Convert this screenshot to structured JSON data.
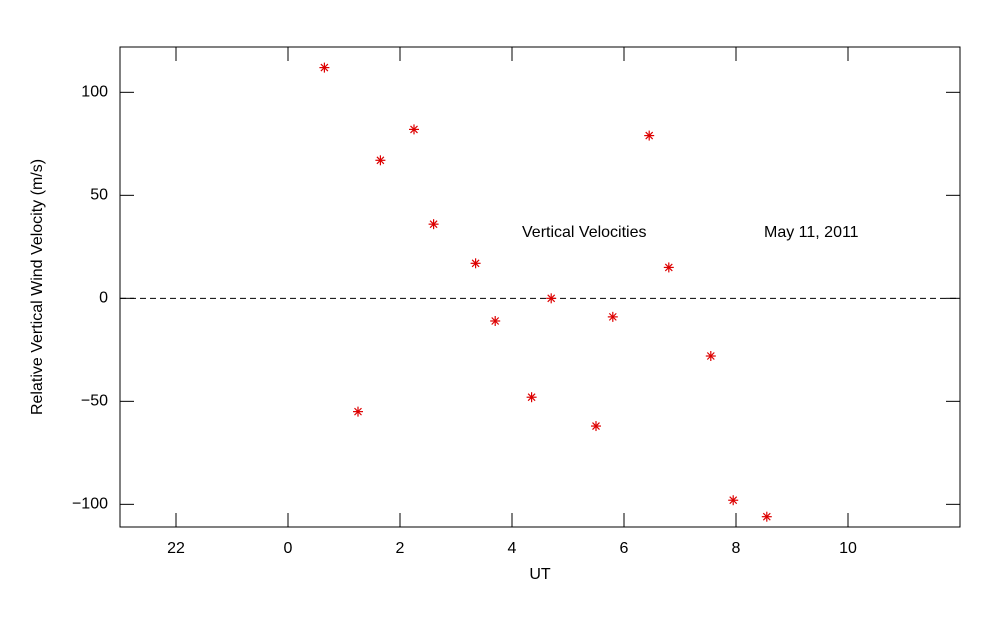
{
  "chart_data": {
    "type": "scatter",
    "xlabel": "UT",
    "ylabel": "Relative Vertical Wind Velocity (m/s)",
    "annotations": [
      "Vertical Velocities",
      "May 11, 2011"
    ],
    "series": [
      {
        "color": "#dd0000",
        "x": [
          0.65,
          1.25,
          1.65,
          2.25,
          2.6,
          3.35,
          3.7,
          4.35,
          4.7,
          5.5,
          5.8,
          6.45,
          6.8,
          7.55,
          7.95,
          8.55
        ],
        "values": [
          112,
          -55,
          67,
          82,
          36,
          17,
          -11,
          -48,
          0,
          -62,
          -9,
          79,
          15,
          -28,
          -98,
          -106
        ]
      }
    ],
    "xlim": [
      -3,
      12
    ],
    "xticks": [
      {
        "value": -2,
        "label": "22"
      },
      0,
      2,
      4,
      6,
      8,
      10
    ],
    "ylim": [
      -111,
      122
    ],
    "yticks": [
      {
        "value": -100,
        "label": "−100"
      },
      {
        "value": -50,
        "label": "−50"
      },
      0,
      50,
      100
    ],
    "hline": 0
  }
}
